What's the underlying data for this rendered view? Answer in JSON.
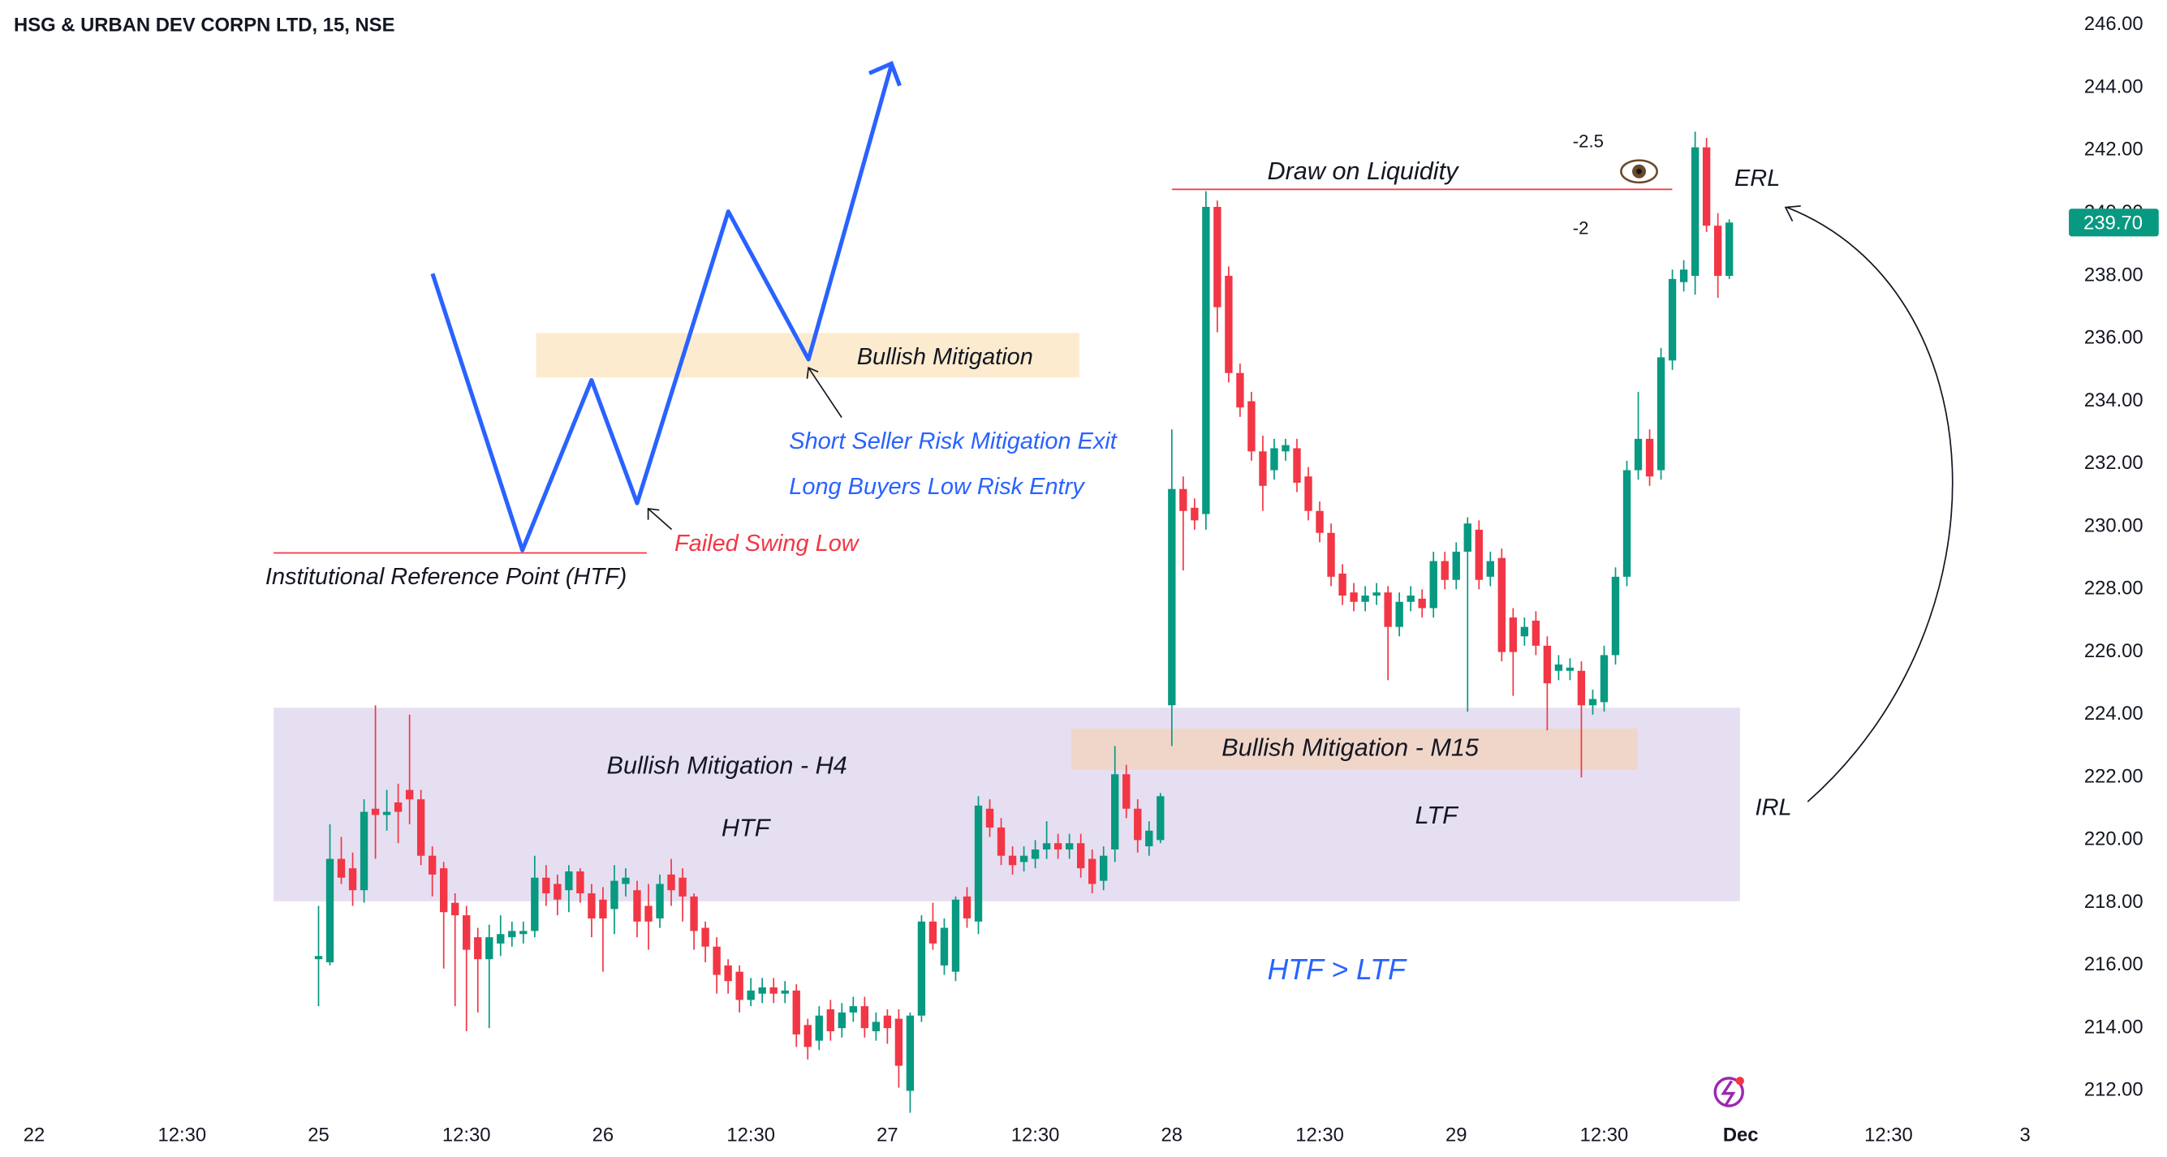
{
  "chart_data": {
    "type": "candlestick",
    "title": "HSG & URBAN DEV CORPN LTD, 15, NSE",
    "annotations": [
      "Bullish Mitigation",
      "Short Seller Risk Mitigation Exit",
      "Long Buyers Low Risk Entry",
      "Failed Swing Low",
      "Institutional Reference Point (HTF)",
      "Draw on Liquidity",
      "-2.5",
      "-2",
      "ERL",
      "IRL",
      "Bullish Mitigation - H4",
      "HTF",
      "Bullish Mitigation - M15",
      "LTF",
      "HTF > LTF"
    ],
    "colors": {
      "up": "#089981",
      "down": "#f23645"
    },
    "open": [
      216.2,
      216.1,
      219.4,
      219.1,
      218.4,
      221.0,
      220.8,
      221.2,
      221.6,
      221.3,
      219.5,
      219.1,
      218.0,
      217.6,
      216.9,
      216.2,
      216.7,
      216.9,
      217.0,
      217.1,
      218.8,
      218.6,
      218.4,
      219.0,
      218.3,
      218.1,
      217.8,
      218.6,
      218.4,
      217.9,
      217.5,
      218.9,
      218.8,
      218.2,
      217.2,
      216.6,
      216.0,
      215.8,
      214.9,
      215.1,
      215.3,
      215.1,
      215.2,
      214.1,
      213.6,
      214.6,
      214.0,
      214.5,
      214.7,
      213.9,
      214.4,
      214.3,
      212.0,
      214.4,
      217.4,
      216.0,
      215.8,
      218.2,
      217.4,
      221.0,
      220.4,
      219.5,
      219.3,
      219.4,
      219.7,
      219.9,
      219.7,
      219.9,
      219.4,
      218.7,
      219.7,
      222.1,
      221.0,
      219.8,
      220.0,
      224.3,
      231.2,
      230.6,
      230.4,
      240.2,
      238.0,
      234.9,
      234.0,
      232.4,
      231.8,
      232.4,
      232.5,
      231.6,
      230.5,
      229.8,
      228.5,
      227.9,
      227.6,
      227.8,
      227.9,
      226.8,
      227.6,
      227.7,
      227.4,
      228.9,
      228.3,
      229.2,
      229.9,
      228.4,
      229.0,
      227.1,
      226.5,
      227.0,
      226.2,
      225.4,
      225.4,
      225.4,
      224.3,
      224.4,
      225.9,
      228.4,
      231.8,
      232.8,
      231.8,
      235.3,
      237.8,
      238.0,
      242.1,
      239.6,
      238.0
    ],
    "high": [
      217.9,
      220.5,
      220.1,
      219.6,
      221.3,
      224.3,
      221.6,
      221.8,
      224.0,
      221.6,
      219.8,
      219.3,
      218.3,
      217.9,
      217.2,
      217.3,
      217.6,
      217.4,
      217.4,
      219.5,
      219.2,
      218.9,
      219.2,
      219.1,
      218.6,
      218.5,
      219.2,
      219.1,
      218.7,
      218.6,
      218.9,
      219.4,
      219.1,
      218.3,
      217.4,
      216.9,
      216.2,
      216.0,
      215.6,
      215.6,
      215.6,
      215.5,
      215.4,
      214.3,
      214.7,
      214.9,
      214.8,
      215.0,
      215.0,
      214.5,
      214.6,
      214.6,
      214.5,
      217.6,
      218.0,
      217.5,
      218.2,
      218.5,
      221.4,
      221.3,
      220.7,
      219.8,
      219.8,
      220.0,
      220.6,
      220.2,
      220.2,
      220.2,
      219.7,
      219.8,
      223.0,
      222.4,
      221.3,
      220.6,
      221.5,
      233.1,
      231.6,
      230.9,
      240.7,
      240.4,
      238.3,
      235.2,
      234.3,
      232.9,
      232.8,
      232.8,
      232.8,
      231.9,
      230.8,
      230.1,
      228.8,
      228.2,
      228.1,
      228.2,
      228.1,
      227.9,
      228.1,
      228.0,
      229.2,
      229.2,
      229.5,
      230.3,
      230.2,
      229.2,
      229.3,
      227.4,
      227.1,
      227.3,
      226.5,
      225.9,
      225.8,
      225.7,
      224.8,
      226.2,
      228.7,
      232.1,
      234.3,
      233.1,
      235.7,
      238.2,
      238.5,
      242.6,
      242.4,
      240.0,
      239.8
    ],
    "low": [
      214.7,
      216.0,
      218.6,
      217.9,
      218.0,
      219.4,
      220.3,
      219.9,
      220.5,
      219.2,
      218.2,
      215.9,
      214.7,
      213.9,
      214.5,
      214.0,
      216.3,
      216.6,
      216.7,
      216.9,
      217.9,
      217.6,
      217.7,
      218.0,
      216.9,
      215.8,
      217.0,
      218.2,
      216.9,
      216.5,
      217.2,
      217.9,
      217.4,
      216.5,
      216.1,
      215.1,
      215.1,
      214.5,
      214.7,
      214.8,
      214.8,
      214.8,
      213.4,
      213.0,
      213.3,
      213.6,
      213.7,
      214.2,
      213.7,
      213.6,
      213.5,
      212.1,
      211.3,
      214.2,
      216.5,
      215.7,
      215.5,
      217.2,
      217.0,
      220.1,
      219.2,
      218.9,
      219.0,
      219.1,
      219.4,
      219.4,
      219.4,
      218.8,
      218.3,
      218.4,
      219.3,
      220.7,
      219.6,
      219.5,
      219.9,
      223.0,
      228.6,
      229.9,
      229.9,
      236.2,
      234.6,
      233.5,
      232.1,
      230.5,
      231.5,
      232.1,
      231.1,
      230.2,
      229.5,
      228.1,
      227.5,
      227.3,
      227.3,
      227.5,
      225.1,
      226.5,
      227.3,
      227.1,
      227.1,
      228.0,
      228.0,
      224.1,
      228.0,
      228.1,
      225.7,
      224.6,
      226.2,
      225.9,
      223.5,
      225.1,
      225.1,
      222.0,
      224.0,
      224.1,
      225.6,
      228.1,
      231.5,
      231.3,
      231.5,
      235.0,
      237.5,
      237.4,
      239.4,
      237.3,
      237.9
    ],
    "close": [
      216.3,
      219.4,
      218.8,
      218.4,
      220.9,
      220.8,
      220.9,
      220.9,
      221.3,
      219.5,
      218.9,
      217.7,
      217.6,
      216.5,
      216.2,
      216.9,
      217.0,
      217.1,
      217.1,
      218.8,
      218.3,
      218.1,
      219.0,
      218.3,
      217.5,
      217.5,
      218.7,
      218.8,
      217.4,
      217.4,
      218.6,
      218.4,
      218.2,
      217.1,
      216.6,
      215.7,
      215.5,
      214.9,
      215.2,
      215.3,
      215.1,
      215.2,
      213.8,
      213.4,
      214.4,
      213.9,
      214.5,
      214.7,
      214.0,
      214.2,
      214.0,
      212.8,
      214.4,
      217.4,
      216.7,
      217.2,
      218.1,
      217.5,
      221.1,
      220.4,
      219.5,
      219.2,
      219.5,
      219.7,
      219.9,
      219.7,
      219.9,
      219.1,
      218.6,
      219.5,
      222.1,
      221.0,
      220.0,
      220.3,
      221.4,
      231.2,
      230.5,
      230.2,
      240.2,
      237.0,
      234.9,
      233.8,
      232.4,
      231.3,
      232.5,
      232.6,
      231.4,
      230.5,
      229.8,
      228.4,
      227.8,
      227.6,
      227.8,
      227.9,
      226.8,
      227.6,
      227.8,
      227.4,
      228.9,
      228.3,
      229.2,
      230.1,
      228.3,
      228.9,
      226.0,
      226.0,
      226.8,
      226.2,
      225.0,
      225.6,
      225.5,
      224.3,
      224.5,
      225.9,
      228.4,
      231.8,
      232.8,
      231.6,
      235.4,
      237.9,
      238.2,
      242.1,
      239.6,
      238.0,
      239.7
    ],
    "last_price": {
      "value": 239.7,
      "label": "239.70"
    },
    "xlim": [
      -28,
      153
    ],
    "xticks": [
      {
        "value": -25,
        "label": "22"
      },
      {
        "value": -12,
        "label": "12:30"
      },
      {
        "value": 0,
        "label": "25"
      },
      {
        "value": 13,
        "label": "12:30"
      },
      {
        "value": 25,
        "label": "26"
      },
      {
        "value": 38,
        "label": "12:30"
      },
      {
        "value": 50,
        "label": "27"
      },
      {
        "value": 63,
        "label": "12:30"
      },
      {
        "value": 75,
        "label": "28"
      },
      {
        "value": 88,
        "label": "12:30"
      },
      {
        "value": 100,
        "label": "29"
      },
      {
        "value": 113,
        "label": "12:30"
      },
      {
        "value": 125,
        "label": "Dec"
      },
      {
        "value": 138,
        "label": "12:30"
      },
      {
        "value": 150,
        "label": "3"
      }
    ],
    "ylim": [
      211.3,
      246.8
    ],
    "yticks": [
      {
        "value": 212,
        "label": "212.00"
      },
      {
        "value": 214,
        "label": "214.00"
      },
      {
        "value": 216,
        "label": "216.00"
      },
      {
        "value": 218,
        "label": "218.00"
      },
      {
        "value": 220,
        "label": "220.00"
      },
      {
        "value": 222,
        "label": "222.00"
      },
      {
        "value": 224,
        "label": "224.00"
      },
      {
        "value": 226,
        "label": "226.00"
      },
      {
        "value": 228,
        "label": "228.00"
      },
      {
        "value": 230,
        "label": "230.00"
      },
      {
        "value": 232,
        "label": "232.00"
      },
      {
        "value": 234,
        "label": "234.00"
      },
      {
        "value": 236,
        "label": "236.00"
      },
      {
        "value": 238,
        "label": "238.00"
      },
      {
        "value": 240,
        "label": "240.00"
      },
      {
        "value": 242,
        "label": "242.00"
      },
      {
        "value": 244,
        "label": "244.00"
      },
      {
        "value": 246,
        "label": "246.00"
      }
    ],
    "grid": false
  }
}
